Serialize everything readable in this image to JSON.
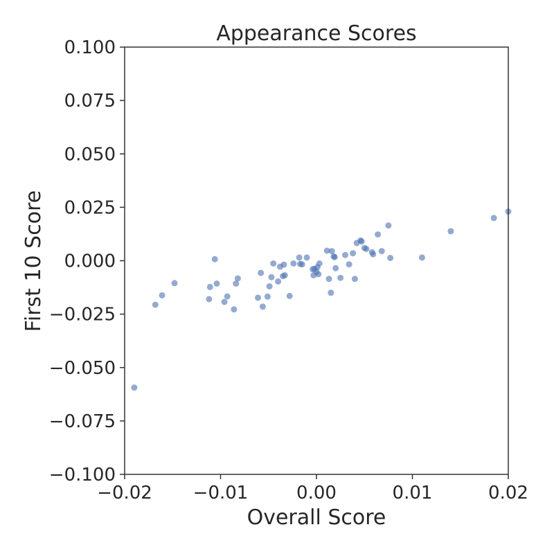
{
  "chart_data": {
    "type": "scatter",
    "title": "Appearance Scores",
    "xlabel": "Overall Score",
    "ylabel": "First 10 Score",
    "xlim": [
      -0.02,
      0.02
    ],
    "ylim": [
      -0.1,
      0.1
    ],
    "xticks": [
      -0.02,
      -0.01,
      0.0,
      0.01,
      0.02
    ],
    "xtick_labels": [
      "−0.02",
      "−0.01",
      "0.00",
      "0.01",
      "0.02"
    ],
    "yticks": [
      -0.1,
      -0.075,
      -0.05,
      -0.025,
      0.0,
      0.025,
      0.05,
      0.075,
      0.1
    ],
    "ytick_labels": [
      "−0.100",
      "−0.075",
      "−0.050",
      "−0.025",
      "0.000",
      "0.025",
      "0.050",
      "0.075",
      "0.100"
    ],
    "grid": false,
    "legend": "none",
    "point_color": "#4c72b0",
    "series": [
      {
        "points": [
          [
            -0.019,
            -0.0594
          ],
          [
            -0.0168,
            -0.0206
          ],
          [
            -0.0161,
            -0.0162
          ],
          [
            -0.0148,
            -0.0105
          ],
          [
            -0.0112,
            -0.018
          ],
          [
            -0.0111,
            -0.0123
          ],
          [
            -0.0104,
            -0.0107
          ],
          [
            -0.0106,
            0.0007
          ],
          [
            -0.0096,
            -0.0193
          ],
          [
            -0.0093,
            -0.0167
          ],
          [
            -0.0086,
            -0.0228
          ],
          [
            -0.0084,
            -0.0107
          ],
          [
            -0.0082,
            -0.0083
          ],
          [
            -0.0061,
            -0.0173
          ],
          [
            -0.0058,
            -0.0057
          ],
          [
            -0.0056,
            -0.0215
          ],
          [
            -0.0051,
            -0.0168
          ],
          [
            -0.0049,
            -0.012
          ],
          [
            -0.0047,
            -0.0077
          ],
          [
            -0.0045,
            -0.0013
          ],
          [
            -0.004,
            -0.0097
          ],
          [
            -0.0038,
            -0.0028
          ],
          [
            -0.0035,
            -0.0072
          ],
          [
            -0.0034,
            -0.0018
          ],
          [
            -0.0033,
            -0.0068
          ],
          [
            -0.0028,
            -0.0165
          ],
          [
            -0.0024,
            -0.0013
          ],
          [
            -0.0018,
            0.0015
          ],
          [
            -0.0017,
            -0.0015
          ],
          [
            -0.0015,
            -0.0017
          ],
          [
            -0.001,
            0.0015
          ],
          [
            -0.0004,
            -0.004
          ],
          [
            -0.0003,
            -0.0068
          ],
          [
            -0.0002,
            -0.0038
          ],
          [
            0.0,
            -0.0053
          ],
          [
            0.0001,
            -0.003
          ],
          [
            0.0002,
            -0.0063
          ],
          [
            0.0003,
            -0.0013
          ],
          [
            0.0011,
            0.0047
          ],
          [
            0.0013,
            -0.0085
          ],
          [
            0.0015,
            -0.015
          ],
          [
            0.0016,
            0.0045
          ],
          [
            0.0018,
            0.002
          ],
          [
            0.0019,
            0.0017
          ],
          [
            0.002,
            -0.0035
          ],
          [
            0.0025,
            -0.008
          ],
          [
            0.003,
            0.0027
          ],
          [
            0.0034,
            -0.0017
          ],
          [
            0.0038,
            0.0035
          ],
          [
            0.004,
            -0.0085
          ],
          [
            0.0042,
            0.0083
          ],
          [
            0.0046,
            0.0095
          ],
          [
            0.0047,
            0.009
          ],
          [
            0.005,
            0.006
          ],
          [
            0.0052,
            0.0055
          ],
          [
            0.0058,
            0.004
          ],
          [
            0.0059,
            0.003
          ],
          [
            0.0064,
            0.0123
          ],
          [
            0.0068,
            0.0045
          ],
          [
            0.0075,
            0.0165
          ],
          [
            0.0077,
            0.0013
          ],
          [
            0.011,
            0.0015
          ],
          [
            0.014,
            0.0138
          ],
          [
            0.0185,
            0.02
          ],
          [
            0.02,
            0.023
          ]
        ]
      }
    ]
  }
}
